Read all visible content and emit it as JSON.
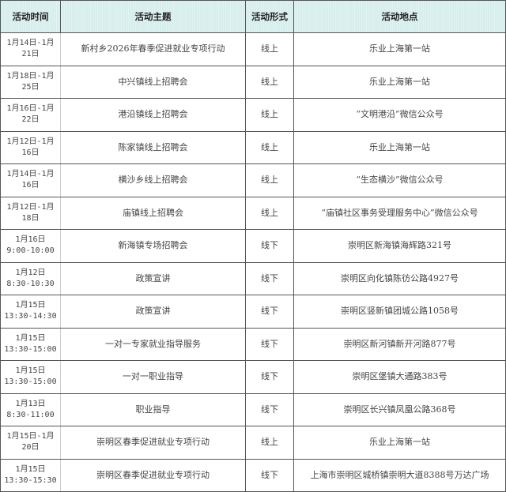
{
  "headers": [
    "活动时间",
    "活动主题",
    "活动形式",
    "活动地点"
  ],
  "rows": [
    {
      "time": "1月14日-1月21日",
      "topic": "新村乡2026年春季促进就业专项行动",
      "mode": "线上",
      "place": "乐业上海第一站"
    },
    {
      "time": "1月18日-1月25日",
      "topic": "中兴镇线上招聘会",
      "mode": "线上",
      "place": "乐业上海第一站"
    },
    {
      "time": "1月16日-1月22日",
      "topic": "港沿镇线上招聘会",
      "mode": "线上",
      "place": "“文明港沿”微信公众号"
    },
    {
      "time": "1月12日-1月16日",
      "topic": "陈家镇线上招聘会",
      "mode": "线上",
      "place": "乐业上海第一站"
    },
    {
      "time": "1月14日-1月16日",
      "topic": "横沙乡线上招聘会",
      "mode": "线上",
      "place": "“生态横沙”微信公众号"
    },
    {
      "time": "1月12日-1月18日",
      "topic": "庙镇线上招聘会",
      "mode": "线上",
      "place": "“庙镇社区事务受理服务中心”微信公众号"
    },
    {
      "time": "1月16日 9:00-10:00",
      "topic": "新海镇专场招聘会",
      "mode": "线下",
      "place": "崇明区新海镇海辉路321号"
    },
    {
      "time": "1月12日 8:30-10:30",
      "topic": "政策宣讲",
      "mode": "线下",
      "place": "崇明区向化镇陈彷公路4927号"
    },
    {
      "time": "1月15日 13:30-14:30",
      "topic": "政策宣讲",
      "mode": "线下",
      "place": "崇明区竖新镇团城公路1058号"
    },
    {
      "time": "1月15日 13:30-15:00",
      "topic": "一对一专家就业指导服务",
      "mode": "线下",
      "place": "崇明区新河镇新开河路877号"
    },
    {
      "time": "1月15日 13:30-15:00",
      "topic": "一对一职业指导",
      "mode": "线下",
      "place": "崇明区堡镇大通路383号"
    },
    {
      "time": "1月13日 8:30-11:00",
      "topic": "职业指导",
      "mode": "线下",
      "place": "崇明区长兴镇凤凰公路368号"
    },
    {
      "time": "1月15日-1月20日",
      "topic": "崇明区春季促进就业专项行动",
      "mode": "线上",
      "place": "乐业上海第一站"
    },
    {
      "time": "1月15日 13:30-15:30",
      "topic": "崇明区春季促进就业专项行动",
      "mode": "线下",
      "place": "上海市崇明区城桥镇崇明大道8388号万达广场"
    }
  ]
}
